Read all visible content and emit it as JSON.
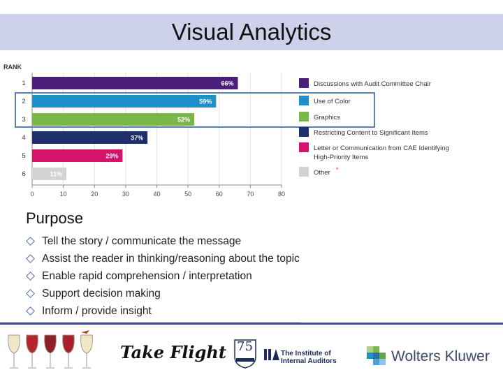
{
  "header": {
    "title": "Visual Analytics"
  },
  "chart_data": {
    "type": "bar",
    "orientation": "horizontal",
    "rank_label": "RANK",
    "categories": [
      "1",
      "2",
      "3",
      "4",
      "5",
      "6"
    ],
    "values": [
      66,
      59,
      52,
      37,
      29,
      11
    ],
    "value_labels": [
      "66%",
      "59%",
      "52%",
      "37%",
      "29%",
      "11%"
    ],
    "colors": [
      "#4b1f7a",
      "#1d8fc9",
      "#7ab648",
      "#1f2f6b",
      "#d6136a",
      "#d3d3d3"
    ],
    "xticks": [
      "0",
      "10",
      "20",
      "30",
      "40",
      "50",
      "60",
      "70",
      "80"
    ],
    "xlim": [
      0,
      80
    ],
    "grid": true,
    "legend_position": "right",
    "legend": [
      {
        "label": "Discussions with Audit Committee Chair",
        "color": "#4b1f7a"
      },
      {
        "label": "Use of Color",
        "color": "#1d8fc9"
      },
      {
        "label": "Graphics",
        "color": "#7ab648"
      },
      {
        "label": "Restricting Content to Significant Items",
        "color": "#1f2f6b"
      },
      {
        "label": "Letter or Communication from CAE Identifying",
        "label2": "High-Priority Items",
        "color": "#d6136a"
      },
      {
        "label": "Other",
        "color": "#d3d3d3",
        "mark": "*"
      }
    ],
    "highlight_ranks": [
      "2",
      "3"
    ]
  },
  "purpose": {
    "heading": "Purpose",
    "items": [
      "Tell the story / communicate the message",
      "Assist the reader in thinking/reasoning about the topic",
      "Enable rapid comprehension / interpretation",
      "Support decision making",
      "Inform / provide insight"
    ]
  },
  "footer": {
    "take_flight": "Take Flight",
    "iia_line1": "The Institute of",
    "iia_line2": "Internal Auditors",
    "iia_badge": "75",
    "wolters_kluwer": "Wolters Kluwer"
  }
}
